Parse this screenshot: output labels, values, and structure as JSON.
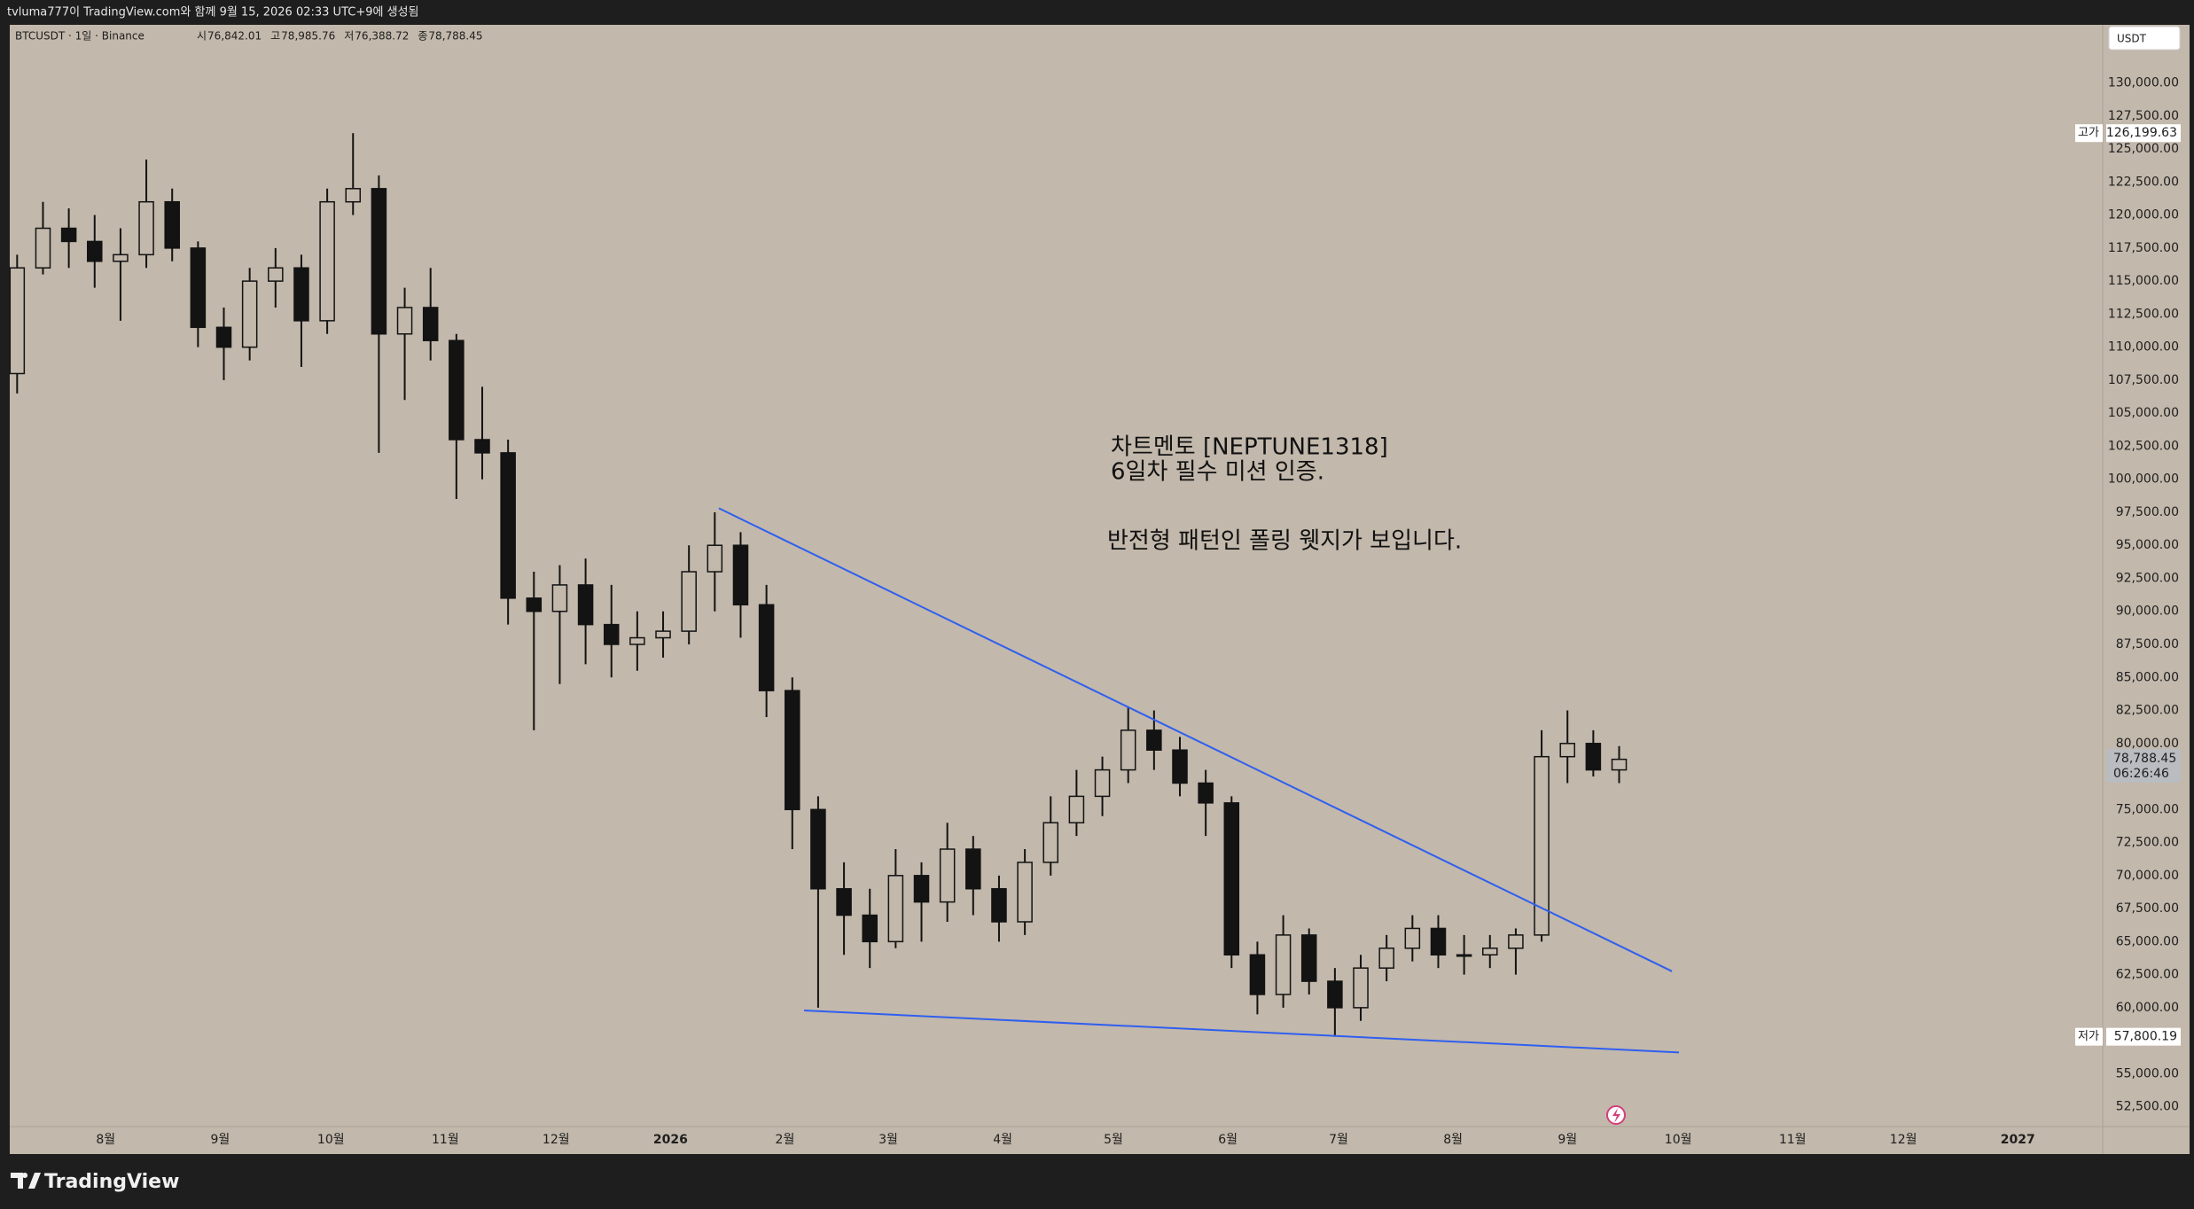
{
  "header": {
    "caption": "tvluma777이 TradingView.com와 함께 9월 15, 2026 02:33 UTC+9에 생성됨"
  },
  "footer": {
    "brand": "TradingView"
  },
  "chart_data": {
    "type": "candlestick",
    "title": "BTCUSDT · 1일 · Binance",
    "ohlc_legend": [
      {
        "name": "시",
        "value": 76842.01,
        "label": "76,842.01"
      },
      {
        "name": "고",
        "value": 78985.76,
        "label": "78,985.76"
      },
      {
        "name": "저",
        "value": 76388.72,
        "label": "76,388.72"
      },
      {
        "name": "종",
        "value": 78788.45,
        "label": "78,788.45"
      }
    ],
    "currency": "USDT",
    "annotations": [
      "차트멘토 [NEPTUNE1318]",
      "6일차 필수 미션 인증.",
      "반전형 패턴인 폴링 웻지가 보입니다."
    ],
    "high_marker": {
      "name": "고가",
      "value": 126199.63,
      "label": "126,199.63"
    },
    "low_marker": {
      "name": "저가",
      "value": 57800.19,
      "label": "57,800.19"
    },
    "last_price": {
      "value": 78788.45,
      "label": "78,788.45",
      "countdown": "06:26:46"
    },
    "color": "#131313",
    "trendline_color": "#2f5ff0",
    "background": "#c2b8ab",
    "xlim": [
      -26,
      541
    ],
    "ylim": [
      51000,
      134400
    ],
    "xticks": [
      {
        "value": 0,
        "label": "8월"
      },
      {
        "value": 31,
        "label": "9월"
      },
      {
        "value": 61,
        "label": "10월"
      },
      {
        "value": 92,
        "label": "11월"
      },
      {
        "value": 122,
        "label": "12월"
      },
      {
        "value": 153,
        "label": "2026"
      },
      {
        "value": 184,
        "label": "2월"
      },
      {
        "value": 212,
        "label": "3월"
      },
      {
        "value": 243,
        "label": "4월"
      },
      {
        "value": 273,
        "label": "5월"
      },
      {
        "value": 304,
        "label": "6월"
      },
      {
        "value": 334,
        "label": "7월"
      },
      {
        "value": 365,
        "label": "8월"
      },
      {
        "value": 396,
        "label": "9월"
      },
      {
        "value": 426,
        "label": "10월"
      },
      {
        "value": 457,
        "label": "11월"
      },
      {
        "value": 487,
        "label": "12월"
      },
      {
        "value": 518,
        "label": "2027"
      }
    ],
    "yticks": [
      {
        "value": 52500,
        "label": "52,500.00"
      },
      {
        "value": 55000,
        "label": "55,000.00"
      },
      {
        "value": 57500,
        "label": "57,500.00"
      },
      {
        "value": 60000,
        "label": "60,000.00"
      },
      {
        "value": 62500,
        "label": "62,500.00"
      },
      {
        "value": 65000,
        "label": "65,000.00"
      },
      {
        "value": 67500,
        "label": "67,500.00"
      },
      {
        "value": 70000,
        "label": "70,000.00"
      },
      {
        "value": 72500,
        "label": "72,500.00"
      },
      {
        "value": 75000,
        "label": "75,000.00"
      },
      {
        "value": 77500,
        "label": "77,500.00"
      },
      {
        "value": 80000,
        "label": "80,000.00"
      },
      {
        "value": 82500,
        "label": "82,500.00"
      },
      {
        "value": 85000,
        "label": "85,000.00"
      },
      {
        "value": 87500,
        "label": "87,500.00"
      },
      {
        "value": 90000,
        "label": "90,000.00"
      },
      {
        "value": 92500,
        "label": "92,500.00"
      },
      {
        "value": 95000,
        "label": "95,000.00"
      },
      {
        "value": 97500,
        "label": "97,500.00"
      },
      {
        "value": 100000,
        "label": "100,000.00"
      },
      {
        "value": 102500,
        "label": "102,500.00"
      },
      {
        "value": 105000,
        "label": "105,000.00"
      },
      {
        "value": 107500,
        "label": "107,500.00"
      },
      {
        "value": 110000,
        "label": "110,000.00"
      },
      {
        "value": 112500,
        "label": "112,500.00"
      },
      {
        "value": 115000,
        "label": "115,000.00"
      },
      {
        "value": 117500,
        "label": "117,500.00"
      },
      {
        "value": 120000,
        "label": "120,000.00"
      },
      {
        "value": 122500,
        "label": "122,500.00"
      },
      {
        "value": 125000,
        "label": "125,000.00"
      },
      {
        "value": 127500,
        "label": "127,500.00"
      },
      {
        "value": 130000,
        "label": "130,000.00"
      }
    ],
    "x": [
      -24,
      -17,
      -10,
      -3,
      4,
      11,
      18,
      25,
      32,
      39,
      46,
      53,
      60,
      67,
      74,
      81,
      88,
      95,
      102,
      109,
      116,
      123,
      130,
      137,
      144,
      151,
      158,
      165,
      172,
      179,
      186,
      193,
      200,
      207,
      214,
      221,
      228,
      235,
      242,
      249,
      256,
      263,
      270,
      277,
      284,
      291,
      298,
      305,
      312,
      319,
      326,
      333,
      340,
      347,
      354,
      361,
      368,
      375,
      382,
      389,
      396,
      403,
      410
    ],
    "open": [
      108000,
      116000,
      119000,
      118000,
      116500,
      117000,
      121000,
      117500,
      111500,
      110000,
      115000,
      116000,
      112000,
      121000,
      122000,
      111000,
      113000,
      110500,
      103000,
      102000,
      91000,
      90000,
      92000,
      89000,
      87500,
      88000,
      88500,
      93000,
      95000,
      90500,
      84000,
      75000,
      69000,
      67000,
      65000,
      70000,
      68000,
      72000,
      69000,
      66500,
      71000,
      74000,
      76000,
      78000,
      81000,
      79500,
      77000,
      75500,
      64000,
      61000,
      65500,
      62000,
      60000,
      63000,
      64500,
      66000,
      64000,
      64000,
      64500,
      65500,
      79000,
      80000,
      78000
    ],
    "high": [
      117000,
      121000,
      120500,
      120000,
      119000,
      124200,
      122000,
      118000,
      113000,
      116000,
      117500,
      117000,
      122000,
      126200,
      123000,
      114500,
      116000,
      111000,
      107000,
      103000,
      93000,
      93500,
      94000,
      92000,
      90000,
      90000,
      95000,
      97500,
      96000,
      92000,
      85000,
      76000,
      71000,
      69000,
      72000,
      71000,
      74000,
      73000,
      70000,
      72000,
      76000,
      78000,
      79000,
      82800,
      82500,
      80500,
      78000,
      76000,
      65000,
      67000,
      66000,
      63000,
      64000,
      65500,
      67000,
      67000,
      65500,
      65500,
      66000,
      81000,
      82500,
      81000,
      79800
    ],
    "low": [
      106500,
      115500,
      116000,
      114500,
      112000,
      116000,
      116500,
      110000,
      107500,
      109000,
      113000,
      108500,
      111000,
      120000,
      102000,
      106000,
      109000,
      98500,
      100000,
      89000,
      81000,
      84500,
      86000,
      85000,
      85500,
      86500,
      87500,
      90000,
      88000,
      82000,
      72000,
      60000,
      64000,
      63000,
      64500,
      65000,
      66500,
      67000,
      65000,
      65500,
      70000,
      73000,
      74500,
      77000,
      78000,
      76000,
      73000,
      63000,
      59500,
      60000,
      61000,
      57800,
      59000,
      62000,
      63500,
      63000,
      62500,
      63000,
      62500,
      65000,
      77000,
      77500,
      77000
    ],
    "close": [
      116000,
      119000,
      118000,
      116500,
      117000,
      121000,
      117500,
      111500,
      110000,
      115000,
      116000,
      112000,
      121000,
      122000,
      111000,
      113000,
      110500,
      103000,
      102000,
      91000,
      90000,
      92000,
      89000,
      87500,
      88000,
      88500,
      93000,
      95000,
      90500,
      84000,
      75000,
      69000,
      67000,
      65000,
      70000,
      68000,
      72000,
      69000,
      66500,
      71000,
      74000,
      76000,
      78000,
      81000,
      79500,
      77000,
      75500,
      64000,
      61000,
      65500,
      62000,
      60000,
      63000,
      64500,
      66000,
      64000,
      64000,
      64500,
      65500,
      79000,
      80000,
      78000,
      78800
    ],
    "trendlines": [
      {
        "points": [
          [
            166.1,
            97806
          ],
          [
            424.3,
            62755
          ]
        ]
      },
      {
        "points": [
          [
            189.2,
            59790
          ],
          [
            426.2,
            56613
          ]
        ]
      }
    ],
    "grid": false
  }
}
